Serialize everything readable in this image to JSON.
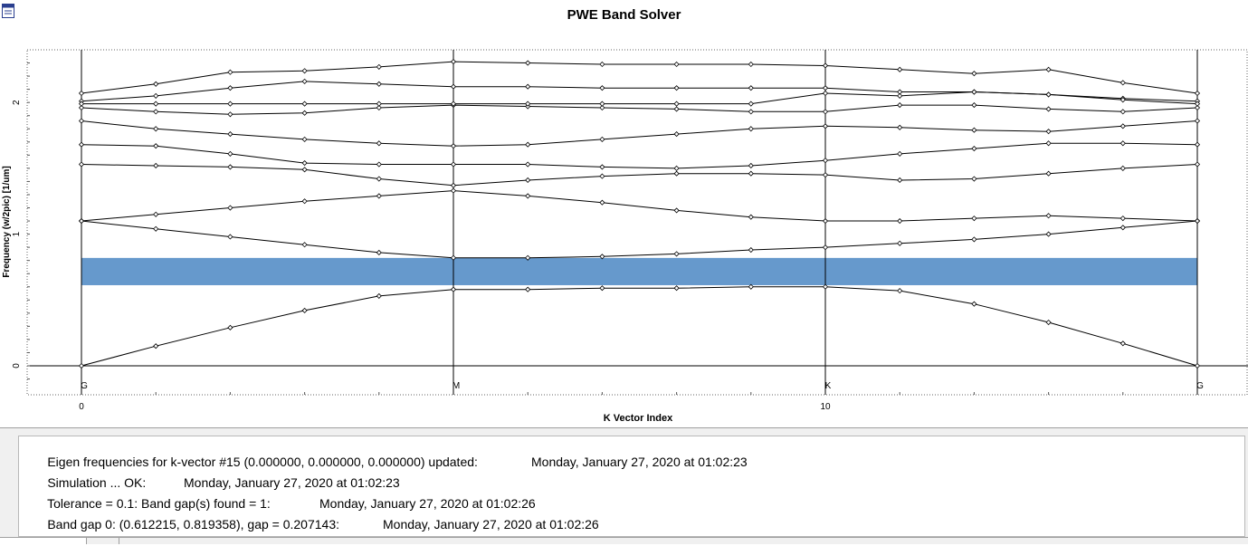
{
  "window": {
    "title": "PWE Band Solver",
    "app_icon": "app-window-icon"
  },
  "chart_data": {
    "type": "line",
    "title": "PWE Band Solver",
    "xlabel": "K Vector Index",
    "ylabel": "Frequency (w/2pic) [1/um]",
    "xlim": [
      0,
      15
    ],
    "ylim": [
      -0.22,
      2.4
    ],
    "x_ticks": [
      {
        "x": 0,
        "label": "0"
      },
      {
        "x": 10,
        "label": "10"
      }
    ],
    "y_ticks": [
      {
        "y": 0,
        "label": "0"
      },
      {
        "y": 1,
        "label": "1"
      },
      {
        "y": 2,
        "label": "2"
      }
    ],
    "symmetry_points": [
      {
        "x": 0,
        "label": "G"
      },
      {
        "x": 5,
        "label": "M"
      },
      {
        "x": 10,
        "label": "K"
      },
      {
        "x": 15,
        "label": "G"
      }
    ],
    "band_gap": {
      "ymin": 0.612215,
      "ymax": 0.819358,
      "color": "#6699cc"
    },
    "grid": "dotted-border",
    "x": [
      0,
      1,
      2,
      3,
      4,
      5,
      6,
      7,
      8,
      9,
      10,
      11,
      12,
      13,
      14,
      15
    ],
    "series": [
      {
        "values": [
          0.0,
          0.15,
          0.29,
          0.42,
          0.53,
          0.58,
          0.58,
          0.59,
          0.59,
          0.6,
          0.6,
          0.57,
          0.47,
          0.33,
          0.17,
          0.0
        ]
      },
      {
        "values": [
          1.1,
          1.04,
          0.98,
          0.92,
          0.86,
          0.82,
          0.82,
          0.83,
          0.85,
          0.88,
          0.9,
          0.93,
          0.96,
          1.0,
          1.05,
          1.1
        ]
      },
      {
        "values": [
          1.1,
          1.15,
          1.2,
          1.25,
          1.29,
          1.33,
          1.29,
          1.24,
          1.18,
          1.13,
          1.1,
          1.1,
          1.12,
          1.14,
          1.12,
          1.1
        ]
      },
      {
        "values": [
          1.53,
          1.52,
          1.51,
          1.49,
          1.42,
          1.37,
          1.41,
          1.44,
          1.46,
          1.46,
          1.45,
          1.41,
          1.42,
          1.46,
          1.5,
          1.53
        ]
      },
      {
        "values": [
          1.68,
          1.67,
          1.61,
          1.54,
          1.53,
          1.53,
          1.53,
          1.51,
          1.5,
          1.52,
          1.56,
          1.61,
          1.65,
          1.69,
          1.69,
          1.68
        ]
      },
      {
        "values": [
          1.86,
          1.8,
          1.76,
          1.72,
          1.69,
          1.67,
          1.68,
          1.72,
          1.76,
          1.8,
          1.82,
          1.81,
          1.79,
          1.78,
          1.82,
          1.86
        ]
      },
      {
        "values": [
          1.96,
          1.93,
          1.91,
          1.92,
          1.96,
          1.98,
          1.97,
          1.96,
          1.95,
          1.93,
          1.93,
          1.98,
          1.98,
          1.95,
          1.93,
          1.96
        ]
      },
      {
        "values": [
          2.01,
          2.05,
          2.11,
          2.16,
          2.14,
          2.12,
          2.12,
          2.11,
          2.11,
          2.11,
          2.11,
          2.08,
          2.08,
          2.06,
          2.03,
          2.01
        ]
      },
      {
        "values": [
          2.07,
          2.14,
          2.23,
          2.24,
          2.27,
          2.31,
          2.3,
          2.29,
          2.29,
          2.29,
          2.28,
          2.25,
          2.22,
          2.25,
          2.15,
          2.07
        ]
      },
      {
        "values": [
          1.99,
          1.99,
          1.99,
          1.99,
          1.99,
          1.99,
          1.99,
          1.99,
          1.99,
          1.99,
          2.07,
          2.05,
          2.08,
          2.06,
          2.02,
          1.99
        ]
      }
    ]
  },
  "log": {
    "lines": [
      {
        "text": "Eigen frequencies for k-vector #15 (0.000000, 0.000000, 0.000000) updated:",
        "timestamp": "Monday, January 27, 2020 at 01:02:23"
      },
      {
        "text": "Simulation ... OK:",
        "timestamp": "Monday, January 27, 2020 at 01:02:23"
      },
      {
        "text": "Tolerance = 0.1: Band gap(s) found = 1:",
        "timestamp": "Monday, January 27, 2020 at 01:02:26"
      },
      {
        "text": "Band gap 0: (0.612215, 0.819358), gap = 0.207143:",
        "timestamp": "Monday, January 27, 2020 at 01:02:26"
      }
    ]
  }
}
